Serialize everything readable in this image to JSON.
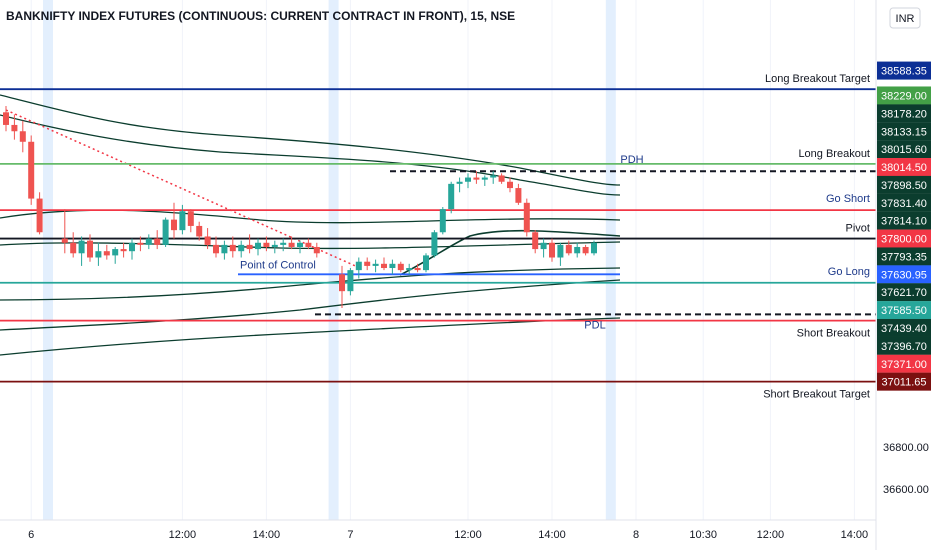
{
  "chart_data": {
    "type": "candlestick",
    "title": "BANKNIFTY INDEX FUTURES (CONTINUOUS: CURRENT CONTRACT IN FRONT), 15, NSE",
    "currency": "INR",
    "ylim": [
      36500,
      38900
    ],
    "y_ticks": [
      {
        "value": 36800,
        "label": "36800.00"
      },
      {
        "value": 36600,
        "label": "36600.00"
      }
    ],
    "x_ticks": [
      {
        "bar": 3,
        "label": "6"
      },
      {
        "bar": 21,
        "label": "12:00"
      },
      {
        "bar": 31,
        "label": "14:00"
      },
      {
        "bar": 41,
        "label": "7"
      },
      {
        "bar": 55,
        "label": "12:00"
      },
      {
        "bar": 65,
        "label": "14:00"
      },
      {
        "bar": 75,
        "label": "8"
      },
      {
        "bar": 83,
        "label": "10:30"
      },
      {
        "bar": 91,
        "label": "12:00"
      },
      {
        "bar": 101,
        "label": "14:00"
      }
    ],
    "session_breaks": [
      5,
      39,
      72
    ],
    "levels": [
      {
        "name": "Long Breakout Target",
        "value": 38500,
        "color": "#0c2f95",
        "badge": "38588.35",
        "badge_value": 38588.35,
        "badge_color": "#0c2f95"
      },
      {
        "name": "",
        "value": null,
        "color": "#2e9b5a",
        "badge": "38229.00",
        "badge_value": 38470,
        "badge_color": "#43a047"
      },
      {
        "name": "",
        "value": null,
        "color": "#0b3d2e",
        "badge": "38178.20",
        "badge_value": 38385,
        "badge_color": "#0b3d2e"
      },
      {
        "name": "",
        "value": null,
        "color": "#0b3d2e",
        "badge": "38133.15",
        "badge_value": 38300,
        "badge_color": "#0b3d2e"
      },
      {
        "name": "Long Breakout",
        "value": 38145,
        "color": "#66bb6a",
        "badge": "38015.60",
        "badge_value": 38215,
        "badge_color": "#0b3d2e"
      },
      {
        "name": "PDH",
        "value": 38110,
        "color": "#131722",
        "badge": "38014.50",
        "badge_value": 38130,
        "badge_color": "#f23645",
        "dashed": true
      },
      {
        "name": "Go Short",
        "value": 37925,
        "color": "#f23645",
        "badge": "37898.50",
        "badge_value": 38045,
        "badge_color": "#0b3d2e"
      },
      {
        "name": "",
        "value": null,
        "color": "#0b3d2e",
        "badge": "37831.40",
        "badge_value": 37960,
        "badge_color": "#0b3d2e"
      },
      {
        "name": "",
        "value": null,
        "color": "#0b3d2e",
        "badge": "37814.10",
        "badge_value": 37875,
        "badge_color": "#0b3d2e"
      },
      {
        "name": "Pivot",
        "value": 37790,
        "color": "#131722",
        "badge": "37800.00",
        "badge_value": 37790,
        "badge_color": "#f23645"
      },
      {
        "name": "",
        "value": null,
        "color": "#0b3d2e",
        "badge": "37793.35",
        "badge_value": 37705,
        "badge_color": "#0b3d2e"
      },
      {
        "name": "Point of Control",
        "value": 37620,
        "color": "#2962ff",
        "badge": "37630.95",
        "badge_value": 37620,
        "badge_color": "#2962ff"
      },
      {
        "name": "Go Long",
        "value": 37580,
        "color": "#26a69a",
        "badge": "37621.70",
        "badge_value": 37535,
        "badge_color": "#0b3d2e"
      },
      {
        "name": "PDL",
        "value": 37430,
        "color": "#131722",
        "badge": "37585.50",
        "badge_value": 37450,
        "badge_color": "#26a69a",
        "dashed": true
      },
      {
        "name": "Short Breakout",
        "value": 37400,
        "color": "#f23645",
        "badge": "37439.40",
        "badge_value": 37365,
        "badge_color": "#0b3d2e"
      },
      {
        "name": "",
        "value": null,
        "color": "#0b3d2e",
        "badge": "37396.70",
        "badge_value": 37280,
        "badge_color": "#0b3d2e"
      },
      {
        "name": "",
        "value": null,
        "color": "#f23645",
        "badge": "37371.00",
        "badge_value": 37195,
        "badge_color": "#f23645"
      },
      {
        "name": "Short Breakout Target",
        "value": 37110,
        "color": "#7b1010",
        "badge": "37011.65",
        "badge_value": 37110,
        "badge_color": "#7b1010"
      }
    ],
    "candles": [
      [
        0,
        38390,
        38420,
        38300,
        38330
      ],
      [
        1,
        38330,
        38380,
        38260,
        38300
      ],
      [
        2,
        38300,
        38350,
        38200,
        38250
      ],
      [
        3,
        38250,
        38280,
        37950,
        37980
      ],
      [
        4,
        37980,
        38010,
        37810,
        37820
      ],
      [
        7,
        37790,
        37930,
        37720,
        37770
      ],
      [
        8,
        37770,
        37820,
        37700,
        37720
      ],
      [
        9,
        37720,
        37800,
        37660,
        37780
      ],
      [
        10,
        37780,
        37810,
        37680,
        37700
      ],
      [
        11,
        37700,
        37770,
        37660,
        37730
      ],
      [
        12,
        37730,
        37760,
        37690,
        37710
      ],
      [
        13,
        37710,
        37750,
        37670,
        37740
      ],
      [
        14,
        37740,
        37770,
        37700,
        37730
      ],
      [
        15,
        37730,
        37790,
        37690,
        37770
      ],
      [
        16,
        37770,
        37800,
        37730,
        37760
      ],
      [
        17,
        37760,
        37810,
        37740,
        37790
      ],
      [
        18,
        37790,
        37830,
        37740,
        37760
      ],
      [
        19,
        37760,
        37890,
        37750,
        37880
      ],
      [
        20,
        37880,
        37960,
        37790,
        37830
      ],
      [
        21,
        37830,
        37950,
        37810,
        37920
      ],
      [
        22,
        37920,
        37930,
        37820,
        37850
      ],
      [
        23,
        37850,
        37870,
        37780,
        37800
      ],
      [
        24,
        37800,
        37840,
        37740,
        37760
      ],
      [
        25,
        37760,
        37800,
        37700,
        37720
      ],
      [
        26,
        37720,
        37780,
        37690,
        37760
      ],
      [
        27,
        37760,
        37800,
        37700,
        37730
      ],
      [
        28,
        37730,
        37780,
        37700,
        37760
      ],
      [
        29,
        37760,
        37810,
        37720,
        37740
      ],
      [
        30,
        37740,
        37790,
        37710,
        37770
      ],
      [
        31,
        37770,
        37800,
        37730,
        37750
      ],
      [
        32,
        37750,
        37780,
        37720,
        37760
      ],
      [
        33,
        37760,
        37790,
        37730,
        37770
      ],
      [
        34,
        37770,
        37800,
        37740,
        37750
      ],
      [
        35,
        37750,
        37780,
        37720,
        37770
      ],
      [
        36,
        37770,
        37790,
        37740,
        37750
      ],
      [
        37,
        37750,
        37770,
        37700,
        37720
      ],
      [
        40,
        37620,
        37660,
        37460,
        37540
      ],
      [
        41,
        37540,
        37650,
        37520,
        37640
      ],
      [
        42,
        37640,
        37700,
        37600,
        37680
      ],
      [
        43,
        37680,
        37700,
        37640,
        37660
      ],
      [
        44,
        37660,
        37690,
        37630,
        37670
      ],
      [
        45,
        37670,
        37700,
        37640,
        37650
      ],
      [
        46,
        37650,
        37690,
        37620,
        37670
      ],
      [
        47,
        37670,
        37680,
        37630,
        37640
      ],
      [
        48,
        37640,
        37670,
        37620,
        37650
      ],
      [
        49,
        37650,
        37670,
        37630,
        37640
      ],
      [
        50,
        37640,
        37720,
        37630,
        37710
      ],
      [
        51,
        37710,
        37830,
        37700,
        37820
      ],
      [
        52,
        37820,
        37940,
        37810,
        37930
      ],
      [
        53,
        37930,
        38060,
        37910,
        38050
      ],
      [
        54,
        38050,
        38080,
        38010,
        38060
      ],
      [
        55,
        38060,
        38100,
        38030,
        38080
      ],
      [
        56,
        38080,
        38110,
        38050,
        38070
      ],
      [
        57,
        38070,
        38090,
        38040,
        38080
      ],
      [
        58,
        38080,
        38110,
        38050,
        38090
      ],
      [
        59,
        38090,
        38100,
        38050,
        38060
      ],
      [
        60,
        38060,
        38080,
        38010,
        38030
      ],
      [
        61,
        38030,
        38050,
        37950,
        37960
      ],
      [
        62,
        37960,
        37980,
        37800,
        37820
      ],
      [
        63,
        37820,
        37830,
        37720,
        37740
      ],
      [
        64,
        37740,
        37790,
        37700,
        37770
      ],
      [
        65,
        37770,
        37790,
        37680,
        37700
      ],
      [
        66,
        37700,
        37770,
        37660,
        37760
      ],
      [
        67,
        37760,
        37780,
        37710,
        37720
      ],
      [
        68,
        37720,
        37770,
        37700,
        37750
      ],
      [
        69,
        37750,
        37760,
        37710,
        37720
      ],
      [
        70,
        37720,
        37780,
        37710,
        37770
      ]
    ]
  }
}
